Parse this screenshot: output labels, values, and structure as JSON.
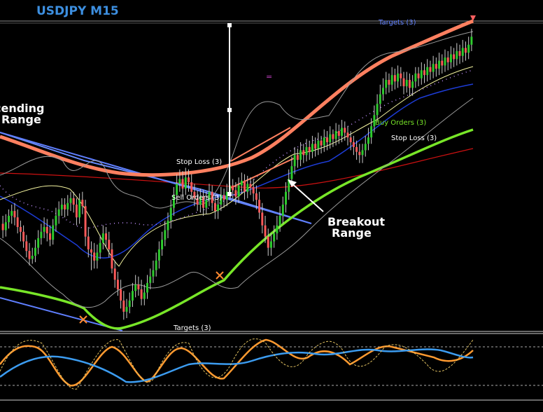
{
  "chart_data": {
    "type": "candlestick",
    "title": "USDJPY M15",
    "annotations": {
      "ascending_range": [
        "cending",
        "Range"
      ],
      "breakout_range": [
        "Breakout",
        "Range"
      ],
      "targets_top": "Targets (3)",
      "stop_loss_upper": "Stop Loss (3)",
      "sell_orders": "Sell Orders (3)",
      "buy_orders": "Buy Orders (3)",
      "stop_loss_lower": "Stop Loss (3)",
      "targets_bottom": "Targets (3)",
      "equals_marker": "="
    },
    "candles": [
      [
        291,
        287,
        296,
        282
      ],
      [
        287,
        292,
        297,
        283
      ],
      [
        292,
        296,
        300,
        288
      ],
      [
        296,
        299,
        303,
        291
      ],
      [
        299,
        295,
        304,
        290
      ],
      [
        295,
        289,
        300,
        285
      ],
      [
        289,
        286,
        293,
        280
      ],
      [
        286,
        280,
        290,
        276
      ],
      [
        280,
        274,
        284,
        270
      ],
      [
        274,
        269,
        279,
        265
      ],
      [
        269,
        271,
        276,
        266
      ],
      [
        271,
        276,
        281,
        267
      ],
      [
        276,
        282,
        287,
        272
      ],
      [
        282,
        286,
        291,
        278
      ],
      [
        286,
        289,
        295,
        282
      ],
      [
        289,
        285,
        294,
        280
      ],
      [
        285,
        281,
        290,
        277
      ],
      [
        281,
        290,
        294,
        278
      ],
      [
        290,
        296,
        301,
        286
      ],
      [
        296,
        300,
        305,
        291
      ],
      [
        300,
        303,
        307,
        296
      ],
      [
        303,
        300,
        307,
        295
      ],
      [
        300,
        304,
        309,
        296
      ],
      [
        304,
        307,
        311,
        299
      ],
      [
        307,
        303,
        311,
        298
      ],
      [
        303,
        295,
        307,
        290
      ],
      [
        295,
        306,
        310,
        291
      ],
      [
        306,
        302,
        311,
        297
      ],
      [
        302,
        283,
        306,
        277
      ],
      [
        283,
        275,
        289,
        270
      ],
      [
        275,
        273,
        280,
        262
      ],
      [
        273,
        268,
        279,
        263
      ],
      [
        268,
        273,
        278,
        263
      ],
      [
        273,
        279,
        284,
        269
      ],
      [
        279,
        285,
        290,
        275
      ],
      [
        285,
        281,
        289,
        276
      ],
      [
        281,
        275,
        286,
        270
      ],
      [
        275,
        263,
        279,
        260
      ],
      [
        263,
        256,
        268,
        251
      ],
      [
        256,
        250,
        261,
        246
      ],
      [
        250,
        243,
        256,
        238
      ],
      [
        243,
        236,
        249,
        231
      ],
      [
        236,
        239,
        244,
        232
      ],
      [
        239,
        243,
        248,
        235
      ],
      [
        243,
        249,
        254,
        239
      ],
      [
        249,
        253,
        259,
        245
      ],
      [
        253,
        250,
        258,
        246
      ],
      [
        250,
        244,
        256,
        240
      ],
      [
        244,
        248,
        253,
        240
      ],
      [
        248,
        254,
        259,
        244
      ],
      [
        254,
        258,
        263,
        250
      ],
      [
        258,
        262,
        268,
        254
      ],
      [
        262,
        268,
        273,
        258
      ],
      [
        268,
        275,
        280,
        263
      ],
      [
        275,
        281,
        286,
        271
      ],
      [
        281,
        287,
        293,
        277
      ],
      [
        287,
        293,
        298,
        282
      ],
      [
        293,
        301,
        306,
        288
      ],
      [
        301,
        309,
        314,
        296
      ],
      [
        309,
        316,
        322,
        304
      ],
      [
        316,
        319,
        325,
        311
      ],
      [
        319,
        313,
        324,
        308
      ],
      [
        313,
        320,
        326,
        309
      ],
      [
        320,
        317,
        325,
        311
      ],
      [
        317,
        311,
        322,
        306
      ],
      [
        311,
        307,
        316,
        302
      ],
      [
        307,
        303,
        312,
        299
      ],
      [
        303,
        308,
        313,
        298
      ],
      [
        308,
        301,
        312,
        296
      ],
      [
        301,
        306,
        311,
        297
      ],
      [
        306,
        311,
        316,
        302
      ],
      [
        311,
        304,
        315,
        299
      ],
      [
        304,
        299,
        309,
        294
      ],
      [
        299,
        303,
        308,
        294
      ],
      [
        303,
        309,
        314,
        299
      ],
      [
        309,
        306,
        313,
        301
      ],
      [
        306,
        311,
        316,
        302
      ],
      [
        311,
        315,
        319,
        306
      ],
      [
        315,
        312,
        319,
        307
      ],
      [
        312,
        308,
        317,
        303
      ],
      [
        308,
        315,
        320,
        304
      ],
      [
        315,
        318,
        323,
        310
      ],
      [
        318,
        311,
        322,
        306
      ],
      [
        311,
        316,
        321,
        307
      ],
      [
        316,
        314,
        320,
        309
      ],
      [
        314,
        310,
        319,
        305
      ],
      [
        310,
        306,
        315,
        300
      ],
      [
        306,
        298,
        311,
        294
      ],
      [
        298,
        290,
        304,
        285
      ],
      [
        290,
        283,
        296,
        279
      ],
      [
        283,
        276,
        288,
        271
      ],
      [
        276,
        280,
        285,
        271
      ],
      [
        280,
        285,
        290,
        276
      ],
      [
        285,
        290,
        296,
        281
      ],
      [
        290,
        296,
        302,
        286
      ],
      [
        296,
        303,
        308,
        291
      ],
      [
        303,
        311,
        317,
        298
      ],
      [
        311,
        319,
        325,
        306
      ],
      [
        319,
        327,
        333,
        314
      ],
      [
        327,
        334,
        339,
        322
      ],
      [
        334,
        331,
        338,
        326
      ],
      [
        331,
        337,
        342,
        327
      ],
      [
        337,
        334,
        341,
        329
      ],
      [
        334,
        339,
        344,
        330
      ],
      [
        339,
        336,
        343,
        331
      ],
      [
        336,
        341,
        346,
        332
      ],
      [
        341,
        338,
        345,
        333
      ],
      [
        338,
        343,
        348,
        334
      ],
      [
        343,
        340,
        346,
        335
      ],
      [
        340,
        345,
        350,
        336
      ],
      [
        345,
        342,
        349,
        337
      ],
      [
        342,
        347,
        352,
        338
      ],
      [
        347,
        344,
        350,
        339
      ],
      [
        344,
        349,
        354,
        340
      ],
      [
        349,
        346,
        353,
        341
      ],
      [
        346,
        351,
        356,
        342
      ],
      [
        351,
        348,
        355,
        343
      ],
      [
        348,
        345,
        352,
        340
      ],
      [
        345,
        342,
        349,
        337
      ],
      [
        342,
        339,
        346,
        334
      ],
      [
        339,
        336,
        343,
        331
      ],
      [
        336,
        334,
        341,
        329
      ],
      [
        334,
        337,
        341,
        329
      ],
      [
        337,
        341,
        346,
        333
      ],
      [
        341,
        345,
        351,
        337
      ],
      [
        345,
        352,
        357,
        341
      ],
      [
        352,
        359,
        365,
        348
      ],
      [
        359,
        366,
        372,
        355
      ],
      [
        366,
        372,
        378,
        361
      ],
      [
        372,
        376,
        382,
        368
      ],
      [
        376,
        381,
        386,
        372
      ],
      [
        381,
        378,
        385,
        373
      ],
      [
        378,
        384,
        389,
        374
      ],
      [
        384,
        380,
        388,
        375
      ],
      [
        380,
        385,
        390,
        376
      ],
      [
        385,
        382,
        389,
        377
      ],
      [
        382,
        377,
        386,
        372
      ],
      [
        377,
        381,
        386,
        373
      ],
      [
        381,
        376,
        385,
        371
      ],
      [
        376,
        380,
        384,
        371
      ],
      [
        380,
        385,
        389,
        376
      ],
      [
        385,
        382,
        389,
        377
      ],
      [
        382,
        387,
        392,
        378
      ],
      [
        387,
        384,
        391,
        379
      ],
      [
        384,
        389,
        394,
        380
      ],
      [
        389,
        386,
        393,
        381
      ],
      [
        386,
        391,
        396,
        382
      ],
      [
        391,
        388,
        395,
        383
      ],
      [
        388,
        393,
        398,
        384
      ],
      [
        393,
        390,
        397,
        385
      ],
      [
        390,
        395,
        400,
        386
      ],
      [
        395,
        392,
        399,
        387
      ],
      [
        392,
        397,
        402,
        388
      ],
      [
        397,
        394,
        401,
        389
      ],
      [
        394,
        399,
        404,
        390
      ],
      [
        399,
        396,
        403,
        391
      ],
      [
        396,
        401,
        406,
        392
      ],
      [
        401,
        398,
        405,
        393
      ],
      [
        398,
        403,
        408,
        394
      ],
      [
        403,
        408,
        413,
        399
      ]
    ]
  }
}
